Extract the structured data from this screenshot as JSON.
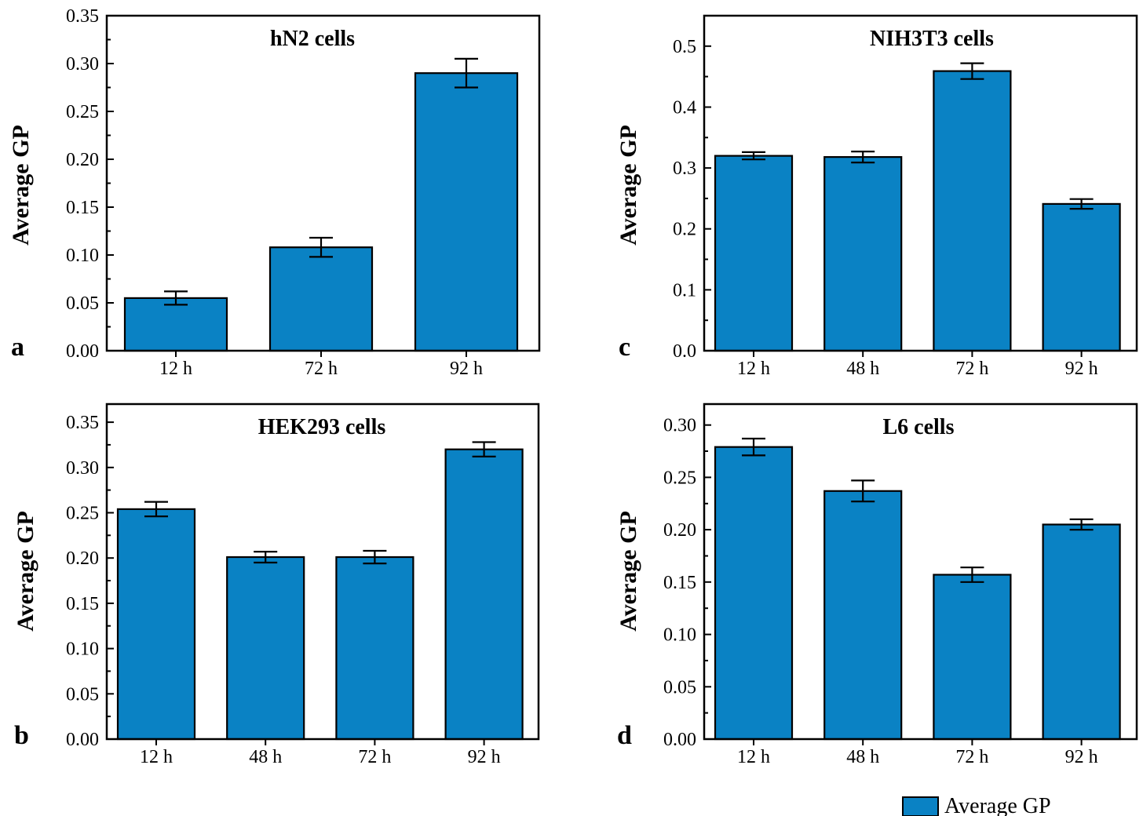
{
  "legend": {
    "label": "Average GP",
    "color": "#0a82c4"
  },
  "bar_color": "#0a82c4",
  "chart_data": [
    {
      "type": "bar",
      "panel": "a",
      "title": "hN2 cells",
      "ylabel": "Average GP",
      "xlabel": "",
      "ylim": [
        0,
        0.35
      ],
      "yticks": [
        "0.00",
        "0.05",
        "0.10",
        "0.15",
        "0.20",
        "0.25",
        "0.30",
        "0.35"
      ],
      "categories": [
        "12 h",
        "72 h",
        "92 h"
      ],
      "values": [
        0.055,
        0.108,
        0.29
      ],
      "errors": [
        0.007,
        0.01,
        0.015
      ]
    },
    {
      "type": "bar",
      "panel": "b",
      "title": "HEK293 cells",
      "ylabel": "Average GP",
      "xlabel": "",
      "ylim": [
        0,
        0.37
      ],
      "yticks": [
        "0.00",
        "0.05",
        "0.10",
        "0.15",
        "0.20",
        "0.25",
        "0.30",
        "0.35"
      ],
      "categories": [
        "12 h",
        "48 h",
        "72 h",
        "92 h"
      ],
      "values": [
        0.254,
        0.201,
        0.201,
        0.32
      ],
      "errors": [
        0.008,
        0.006,
        0.007,
        0.008
      ]
    },
    {
      "type": "bar",
      "panel": "c",
      "title": "NIH3T3 cells",
      "ylabel": "Average GP",
      "xlabel": "",
      "ylim": [
        0,
        0.55
      ],
      "yticks": [
        "0.0",
        "0.1",
        "0.2",
        "0.3",
        "0.4",
        "0.5"
      ],
      "categories": [
        "12 h",
        "48 h",
        "72 h",
        "92 h"
      ],
      "values": [
        0.32,
        0.318,
        0.459,
        0.241
      ],
      "errors": [
        0.006,
        0.009,
        0.013,
        0.008
      ]
    },
    {
      "type": "bar",
      "panel": "d",
      "title": "L6 cells",
      "ylabel": "Average GP",
      "xlabel": "",
      "ylim": [
        0,
        0.32
      ],
      "yticks": [
        "0.00",
        "0.05",
        "0.10",
        "0.15",
        "0.20",
        "0.25",
        "0.30"
      ],
      "categories": [
        "12 h",
        "48 h",
        "72 h",
        "92 h"
      ],
      "values": [
        0.279,
        0.237,
        0.157,
        0.205
      ],
      "errors": [
        0.008,
        0.01,
        0.007,
        0.005
      ]
    }
  ]
}
